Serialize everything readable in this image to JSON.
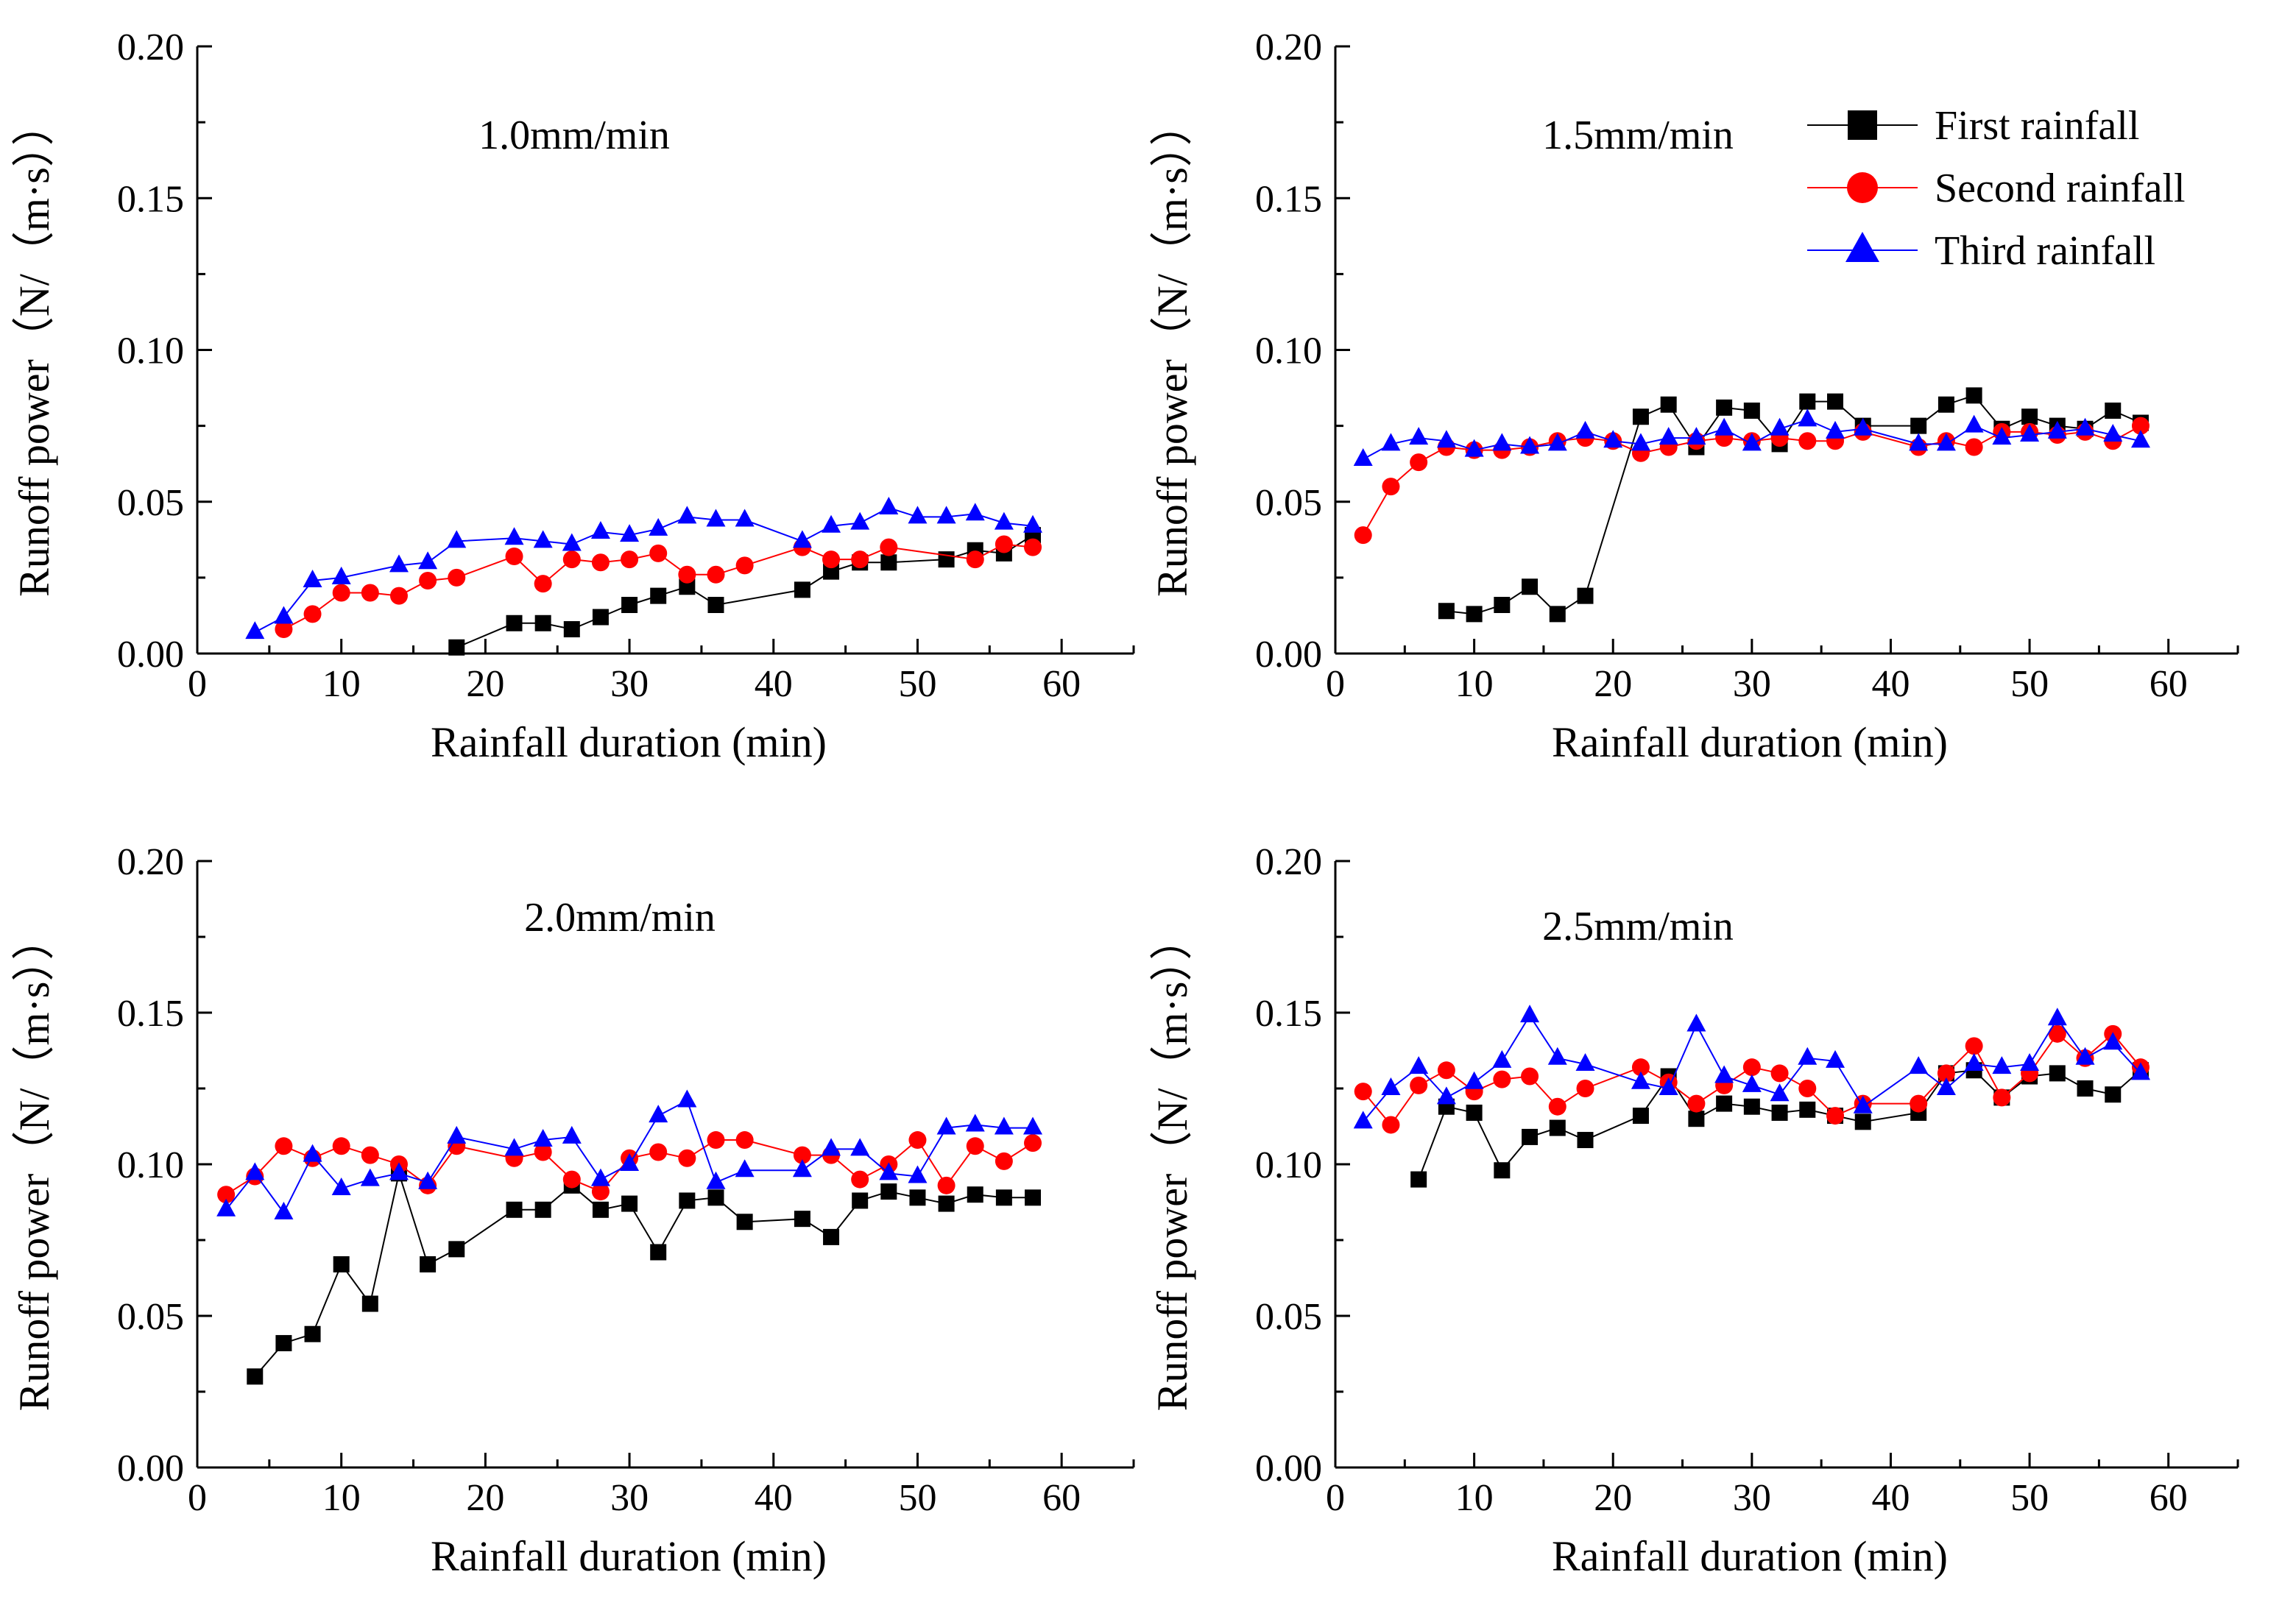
{
  "figure": {
    "legend": {
      "entries": [
        {
          "name": "First rainfall",
          "color": "#000000",
          "marker": "square"
        },
        {
          "name": "Second rainfall",
          "color": "#ff0000",
          "marker": "circle"
        },
        {
          "name": "Third rainfall",
          "color": "#0000ff",
          "marker": "triangle"
        }
      ]
    }
  },
  "chart_data": [
    {
      "type": "line",
      "title": "1.0mm/min",
      "xlabel": "Rainfall duration (min)",
      "ylabel": "Runoff power（N/（m·s））",
      "xlim": [
        0,
        65
      ],
      "ylim": [
        0,
        0.2
      ],
      "xticks": [
        0,
        10,
        20,
        30,
        40,
        50,
        60
      ],
      "yticks": [
        0.0,
        0.05,
        0.1,
        0.15,
        0.2
      ],
      "series": [
        {
          "name": "First rainfall",
          "x": [
            18,
            22,
            24,
            26,
            28,
            30,
            32,
            34,
            36,
            42,
            44,
            46,
            48,
            52,
            54,
            56,
            58
          ],
          "values": [
            0.002,
            0.01,
            0.01,
            0.008,
            0.012,
            0.016,
            0.019,
            0.022,
            0.016,
            0.021,
            0.027,
            0.03,
            0.03,
            0.031,
            0.034,
            0.033,
            0.039
          ]
        },
        {
          "name": "Second rainfall",
          "x": [
            6,
            8,
            10,
            12,
            14,
            16,
            18,
            22,
            24,
            26,
            28,
            30,
            32,
            34,
            36,
            38,
            42,
            44,
            46,
            48,
            54,
            56,
            58
          ],
          "values": [
            0.008,
            0.013,
            0.02,
            0.02,
            0.019,
            0.024,
            0.025,
            0.032,
            0.023,
            0.031,
            0.03,
            0.031,
            0.033,
            0.026,
            0.026,
            0.029,
            0.035,
            0.031,
            0.031,
            0.035,
            0.031,
            0.036,
            0.035
          ]
        },
        {
          "name": "Third rainfall",
          "x": [
            4,
            6,
            8,
            10,
            14,
            16,
            18,
            22,
            24,
            26,
            28,
            30,
            32,
            34,
            36,
            38,
            42,
            44,
            46,
            48,
            50,
            52,
            54,
            56,
            58
          ],
          "values": [
            0.007,
            0.012,
            0.024,
            0.025,
            0.029,
            0.03,
            0.037,
            0.038,
            0.037,
            0.036,
            0.04,
            0.039,
            0.041,
            0.045,
            0.044,
            0.044,
            0.037,
            0.042,
            0.043,
            0.048,
            0.045,
            0.045,
            0.046,
            0.043,
            0.042
          ]
        }
      ]
    },
    {
      "type": "line",
      "title": "1.5mm/min",
      "xlabel": "Rainfall duration (min)",
      "ylabel": "Runoff power（N/（m·s））",
      "xlim": [
        0,
        65
      ],
      "ylim": [
        0,
        0.2
      ],
      "xticks": [
        0,
        10,
        20,
        30,
        40,
        50,
        60
      ],
      "yticks": [
        0.0,
        0.05,
        0.1,
        0.15,
        0.2
      ],
      "series": [
        {
          "name": "First rainfall",
          "x": [
            8,
            10,
            12,
            14,
            16,
            18,
            22,
            24,
            26,
            28,
            30,
            32,
            34,
            36,
            38,
            42,
            44,
            46,
            48,
            50,
            52,
            54,
            56,
            58
          ],
          "values": [
            0.014,
            0.013,
            0.016,
            0.022,
            0.013,
            0.019,
            0.078,
            0.082,
            0.068,
            0.081,
            0.08,
            0.069,
            0.083,
            0.083,
            0.075,
            0.075,
            0.082,
            0.085,
            0.074,
            0.078,
            0.075,
            0.074,
            0.08,
            0.076
          ]
        },
        {
          "name": "Second rainfall",
          "x": [
            2,
            4,
            6,
            8,
            10,
            12,
            14,
            16,
            18,
            20,
            22,
            24,
            26,
            28,
            30,
            32,
            34,
            36,
            38,
            42,
            44,
            46,
            48,
            50,
            52,
            54,
            56,
            58
          ],
          "values": [
            0.039,
            0.055,
            0.063,
            0.068,
            0.067,
            0.067,
            0.068,
            0.07,
            0.071,
            0.07,
            0.066,
            0.068,
            0.07,
            0.071,
            0.07,
            0.071,
            0.07,
            0.07,
            0.073,
            0.068,
            0.07,
            0.068,
            0.073,
            0.073,
            0.072,
            0.073,
            0.07,
            0.075
          ]
        },
        {
          "name": "Third rainfall",
          "x": [
            2,
            4,
            6,
            8,
            10,
            12,
            14,
            16,
            18,
            20,
            22,
            24,
            26,
            28,
            30,
            32,
            34,
            36,
            38,
            42,
            44,
            46,
            48,
            50,
            52,
            54,
            56,
            58
          ],
          "values": [
            0.064,
            0.069,
            0.071,
            0.07,
            0.067,
            0.069,
            0.068,
            0.069,
            0.073,
            0.07,
            0.069,
            0.071,
            0.071,
            0.074,
            0.069,
            0.074,
            0.077,
            0.073,
            0.074,
            0.069,
            0.069,
            0.075,
            0.071,
            0.072,
            0.073,
            0.074,
            0.072,
            0.07
          ]
        }
      ]
    },
    {
      "type": "line",
      "title": "2.0mm/min",
      "xlabel": "Rainfall duration (min)",
      "ylabel": "Runoff power（N/（m·s））",
      "xlim": [
        0,
        65
      ],
      "ylim": [
        0,
        0.2
      ],
      "xticks": [
        0,
        10,
        20,
        30,
        40,
        50,
        60
      ],
      "yticks": [
        0.0,
        0.05,
        0.1,
        0.15,
        0.2
      ],
      "series": [
        {
          "name": "First rainfall",
          "x": [
            4,
            6,
            8,
            10,
            12,
            14,
            16,
            18,
            22,
            24,
            26,
            28,
            30,
            32,
            34,
            36,
            38,
            42,
            44,
            46,
            48,
            50,
            52,
            54,
            56,
            58
          ],
          "values": [
            0.03,
            0.041,
            0.044,
            0.067,
            0.054,
            0.097,
            0.067,
            0.072,
            0.085,
            0.085,
            0.093,
            0.085,
            0.087,
            0.071,
            0.088,
            0.089,
            0.081,
            0.082,
            0.076,
            0.088,
            0.091,
            0.089,
            0.087,
            0.09,
            0.089,
            0.089
          ]
        },
        {
          "name": "Second rainfall",
          "x": [
            2,
            4,
            6,
            8,
            10,
            12,
            14,
            16,
            18,
            22,
            24,
            26,
            28,
            30,
            32,
            34,
            36,
            38,
            42,
            44,
            46,
            48,
            50,
            52,
            54,
            56,
            58
          ],
          "values": [
            0.09,
            0.096,
            0.106,
            0.102,
            0.106,
            0.103,
            0.1,
            0.093,
            0.106,
            0.102,
            0.104,
            0.095,
            0.091,
            0.102,
            0.104,
            0.102,
            0.108,
            0.108,
            0.103,
            0.103,
            0.095,
            0.1,
            0.108,
            0.093,
            0.106,
            0.101,
            0.107
          ]
        },
        {
          "name": "Third rainfall",
          "x": [
            2,
            4,
            6,
            8,
            10,
            12,
            14,
            16,
            18,
            22,
            24,
            26,
            28,
            30,
            32,
            34,
            36,
            38,
            42,
            44,
            46,
            48,
            50,
            52,
            54,
            56,
            58
          ],
          "values": [
            0.085,
            0.097,
            0.084,
            0.103,
            0.092,
            0.095,
            0.097,
            0.094,
            0.109,
            0.105,
            0.108,
            0.109,
            0.095,
            0.1,
            0.116,
            0.121,
            0.094,
            0.098,
            0.098,
            0.105,
            0.105,
            0.097,
            0.096,
            0.112,
            0.113,
            0.112,
            0.112
          ]
        }
      ]
    },
    {
      "type": "line",
      "title": "2.5mm/min",
      "xlabel": "Rainfall duration (min)",
      "ylabel": "Runoff power（N/（m·s））",
      "xlim": [
        0,
        65
      ],
      "ylim": [
        0,
        0.2
      ],
      "xticks": [
        0,
        10,
        20,
        30,
        40,
        50,
        60
      ],
      "yticks": [
        0.0,
        0.05,
        0.1,
        0.15,
        0.2
      ],
      "series": [
        {
          "name": "First rainfall",
          "x": [
            6,
            8,
            10,
            12,
            14,
            16,
            18,
            22,
            24,
            26,
            28,
            30,
            32,
            34,
            36,
            38,
            42,
            44,
            46,
            48,
            50,
            52,
            54,
            56,
            58
          ],
          "values": [
            0.095,
            0.119,
            0.117,
            0.098,
            0.109,
            0.112,
            0.108,
            0.116,
            0.129,
            0.115,
            0.12,
            0.119,
            0.117,
            0.118,
            0.116,
            0.114,
            0.117,
            0.13,
            0.131,
            0.122,
            0.129,
            0.13,
            0.125,
            0.123,
            0.131
          ]
        },
        {
          "name": "Second rainfall",
          "x": [
            2,
            4,
            6,
            8,
            10,
            12,
            14,
            16,
            18,
            22,
            24,
            26,
            28,
            30,
            32,
            34,
            36,
            38,
            42,
            44,
            46,
            48,
            50,
            52,
            54,
            56,
            58
          ],
          "values": [
            0.124,
            0.113,
            0.126,
            0.131,
            0.124,
            0.128,
            0.129,
            0.119,
            0.125,
            0.132,
            0.127,
            0.12,
            0.126,
            0.132,
            0.13,
            0.125,
            0.116,
            0.12,
            0.12,
            0.13,
            0.139,
            0.122,
            0.13,
            0.143,
            0.135,
            0.143,
            0.132
          ]
        },
        {
          "name": "Third rainfall",
          "x": [
            2,
            4,
            6,
            8,
            10,
            12,
            14,
            16,
            18,
            22,
            24,
            26,
            28,
            30,
            32,
            34,
            36,
            38,
            42,
            44,
            46,
            48,
            50,
            52,
            54,
            56,
            58
          ],
          "values": [
            0.114,
            0.125,
            0.132,
            0.122,
            0.127,
            0.134,
            0.149,
            0.135,
            0.133,
            0.127,
            0.125,
            0.146,
            0.129,
            0.126,
            0.123,
            0.135,
            0.134,
            0.119,
            0.132,
            0.125,
            0.133,
            0.132,
            0.133,
            0.148,
            0.135,
            0.14,
            0.13
          ]
        }
      ]
    }
  ]
}
